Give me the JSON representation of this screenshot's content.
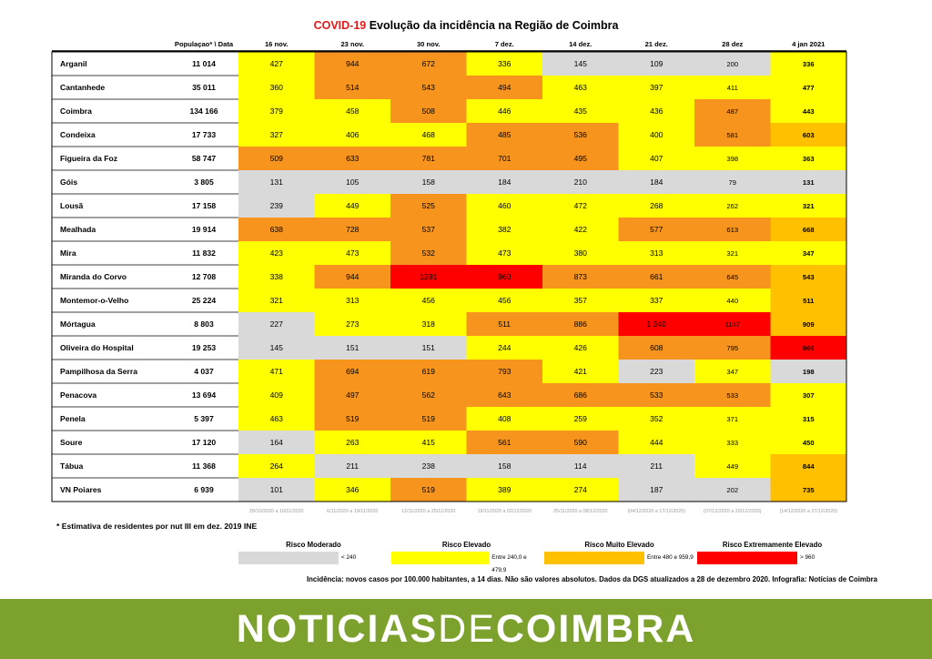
{
  "title": {
    "highlight": "COVID-19",
    "rest": " Evolução da incidência na Região de Coimbra"
  },
  "header": {
    "population": "Populaçao* \\ Data"
  },
  "chart_data": {
    "type": "heatmap",
    "title": "COVID-19 Evolução da incidência na Região de Coimbra",
    "columns": [
      "16 nov.",
      "23 nov.",
      "30 nov.",
      "7 dez.",
      "14 dez.",
      "21 dez.",
      "28 dez",
      "4 jan 2021"
    ],
    "periods": [
      "28/10/2020 a 10/11/2020",
      "6/11/2020 a 19/11/2020",
      "12/11/2020 a 25/11/2020",
      "19/11/2020 a 02/12/2020",
      "25/11/2020 a 08/12/2020",
      "(04/12/2020 a 17/12/2020)",
      "(07/12/2020 a 20/12/2020)",
      "(14/12/2020 a 27/12/2020)"
    ],
    "rows": [
      {
        "name": "Arganil",
        "population": "11 014",
        "values": [
          "427",
          "944",
          "672",
          "336",
          "145",
          "109",
          "200",
          "336"
        ]
      },
      {
        "name": "Cantanhede",
        "population": "35 011",
        "values": [
          "360",
          "514",
          "543",
          "494",
          "463",
          "397",
          "411",
          "477"
        ]
      },
      {
        "name": "Coimbra",
        "population": "134 166",
        "values": [
          "379",
          "458",
          "508",
          "446",
          "435",
          "436",
          "487",
          "443"
        ]
      },
      {
        "name": "Condeixa",
        "population": "17 733",
        "values": [
          "327",
          "406",
          "468",
          "485",
          "536",
          "400",
          "581",
          "603"
        ]
      },
      {
        "name": "Figueira da Foz",
        "population": "58 747",
        "values": [
          "509",
          "633",
          "781",
          "701",
          "495",
          "407",
          "398",
          "363"
        ]
      },
      {
        "name": "Góis",
        "population": "3 805",
        "values": [
          "131",
          "105",
          "158",
          "184",
          "210",
          "184",
          "79",
          "131"
        ]
      },
      {
        "name": "Lousã",
        "population": "17 158",
        "values": [
          "239",
          "449",
          "525",
          "460",
          "472",
          "268",
          "262",
          "321"
        ]
      },
      {
        "name": "Mealhada",
        "population": "19 914",
        "values": [
          "638",
          "728",
          "537",
          "382",
          "422",
          "577",
          "613",
          "668"
        ]
      },
      {
        "name": "Mira",
        "population": "11 832",
        "values": [
          "423",
          "473",
          "532",
          "473",
          "380",
          "313",
          "321",
          "347"
        ]
      },
      {
        "name": "Miranda do Corvo",
        "population": "12 708",
        "values": [
          "338",
          "944",
          "1291",
          "960",
          "873",
          "661",
          "645",
          "543"
        ]
      },
      {
        "name": "Montemor-o-Velho",
        "population": "25 224",
        "values": [
          "321",
          "313",
          "456",
          "456",
          "357",
          "337",
          "440",
          "511"
        ]
      },
      {
        "name": "Mórtagua",
        "population": "8 803",
        "values": [
          "227",
          "273",
          "318",
          "511",
          "886",
          "1 340",
          "1147",
          "909"
        ]
      },
      {
        "name": "Oliveira do Hospital",
        "population": "19 253",
        "values": [
          "145",
          "151",
          "151",
          "244",
          "426",
          "608",
          "795",
          "966"
        ]
      },
      {
        "name": "Pampilhosa da Serra",
        "population": "4 037",
        "values": [
          "471",
          "694",
          "619",
          "793",
          "421",
          "223",
          "347",
          "198"
        ]
      },
      {
        "name": "Penacova",
        "population": "13 694",
        "values": [
          "409",
          "497",
          "562",
          "643",
          "686",
          "533",
          "533",
          "307"
        ]
      },
      {
        "name": "Penela",
        "population": "5 397",
        "values": [
          "463",
          "519",
          "519",
          "408",
          "259",
          "352",
          "371",
          "315"
        ]
      },
      {
        "name": "Soure",
        "population": "17 120",
        "values": [
          "164",
          "263",
          "415",
          "561",
          "590",
          "444",
          "333",
          "450"
        ]
      },
      {
        "name": "Tábua",
        "population": "11 368",
        "values": [
          "264",
          "211",
          "238",
          "158",
          "114",
          "211",
          "449",
          "844"
        ]
      },
      {
        "name": "VN Poiares",
        "population": "6 939",
        "values": [
          "101",
          "346",
          "519",
          "389",
          "274",
          "187",
          "202",
          "735"
        ]
      }
    ],
    "legend": [
      {
        "label": "Risco Moderado",
        "range": "< 240",
        "color": "#d9d9d9"
      },
      {
        "label": "Risco Elevado",
        "range": "Entre 240,0 e 479,9",
        "color": "#ffff00"
      },
      {
        "label": "Risco Muito Elevado",
        "range": "Entre 480 e 959,9",
        "color": "#ffc000"
      },
      {
        "label": "Risco Extremamente Elevado",
        "range": "> 960",
        "color": "#ff0000"
      }
    ],
    "cell_colors": {
      "gray": "#d9d9d9",
      "yellow": "#ffff00",
      "orange": "#f7941d",
      "amber": "#ffc000",
      "red": "#ff0000"
    },
    "grid": false
  },
  "footnote": "* Estimativa de residentes por nut III em dez. 2019 INE",
  "source": "Incidência: novos casos por 100.000 habitantes, a 14 dias. Não são valores absolutos. Dados da DGS atualizados a 28 de dezembro 2020. Infografia: Notícias de Coimbra",
  "brand": {
    "part1": "NOTICIAS",
    "part2": "DE",
    "part3": "COIMBRA"
  }
}
